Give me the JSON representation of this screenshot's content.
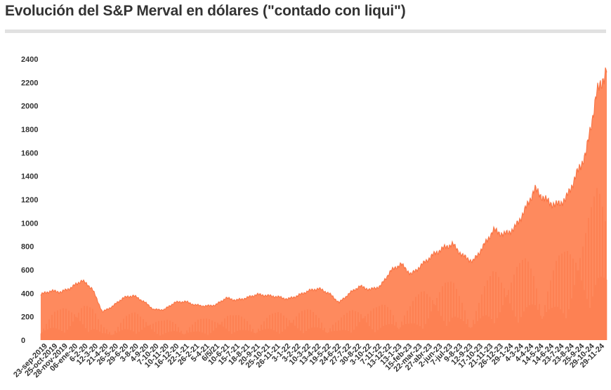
{
  "page": {
    "title": "Evolución del S&P Merval en dólares (\"contado con liqui\")"
  },
  "chart_data": {
    "type": "area",
    "title": "Evolución del S&P Merval en dólares (\"contado con liqui\")",
    "xlabel": "",
    "ylabel": "",
    "ylim": [
      0,
      2400
    ],
    "yticks": [
      0,
      200,
      400,
      600,
      800,
      1000,
      1200,
      1400,
      1600,
      1800,
      2000,
      2200,
      2400
    ],
    "grid": false,
    "legend": "none",
    "colors": {
      "fill": "#fe8a5e",
      "stroke": "#f87040",
      "dark": "#fa6a36"
    },
    "x_tick_labels": [
      "23-sep-2019",
      "25-oct-2019",
      "28-nov-2019",
      "06-ene-20",
      "6-2-20",
      "12-3-20",
      "21-4-20",
      "26-5-20",
      "29-6-20",
      "3-8-20",
      "4-9-20",
      "7-10-20",
      "10-11-20",
      "16-12-20",
      "22-1-21",
      "26-2-21",
      "5-4-21",
      "6/5/21",
      "10-6-21",
      "15-7-21",
      "18-8-21",
      "20-9-21",
      "25-10-21",
      "26-11-21",
      "3-1-22",
      "3-2-22",
      "10-3-22",
      "13-4-22",
      "19-5-22",
      "24-6-22",
      "27-7-22",
      "30-8-22",
      "3-10-22",
      "7-11-22",
      "13-12-22",
      "13-1-23",
      "15-feb-23",
      "22-mar-23",
      "27-abr-23",
      "2-jun-23",
      "7-jul-23",
      "9-8-23",
      "12-9-23",
      "17-10-23",
      "21-11-23",
      "26-12-23",
      "29-1-24",
      "4-3-24",
      "4-4-24",
      "14-5-24",
      "14-6-24",
      "23-7-24",
      "23-8-24",
      "25-9-24",
      "29-10-24",
      "29-11-24"
    ],
    "x": [
      "23-sep-2019",
      "25-oct-2019",
      "28-nov-2019",
      "06-ene-20",
      "6-2-20",
      "12-3-20",
      "21-4-20",
      "26-5-20",
      "29-6-20",
      "3-8-20",
      "4-9-20",
      "7-10-20",
      "10-11-20",
      "16-12-20",
      "22-1-21",
      "26-2-21",
      "5-4-21",
      "6/5/21",
      "10-6-21",
      "15-7-21",
      "18-8-21",
      "20-9-21",
      "25-10-21",
      "26-11-21",
      "3-1-22",
      "3-2-22",
      "10-3-22",
      "13-4-22",
      "19-5-22",
      "24-6-22",
      "27-7-22",
      "30-8-22",
      "3-10-22",
      "7-11-22",
      "13-12-22",
      "13-1-23",
      "15-feb-23",
      "22-mar-23",
      "27-abr-23",
      "2-jun-23",
      "7-jul-23",
      "9-8-23",
      "12-9-23",
      "17-10-23",
      "21-11-23",
      "26-12-23",
      "29-1-24",
      "4-3-24",
      "4-4-24",
      "14-5-24",
      "14-6-24",
      "23-7-24",
      "23-8-24",
      "25-9-24",
      "29-10-24",
      "29-11-24"
    ],
    "series": [
      {
        "values": [
          390,
          420,
          410,
          450,
          510,
          440,
          240,
          290,
          360,
          380,
          330,
          260,
          260,
          320,
          330,
          300,
          290,
          300,
          360,
          340,
          360,
          390,
          380,
          370,
          350,
          380,
          420,
          440,
          400,
          320,
          400,
          460,
          430,
          460,
          590,
          650,
          560,
          640,
          720,
          780,
          820,
          720,
          670,
          800,
          940,
          900,
          950,
          1100,
          1290,
          1200,
          1150,
          1200,
          1400,
          1600,
          2100,
          2310
        ]
      }
    ]
  }
}
